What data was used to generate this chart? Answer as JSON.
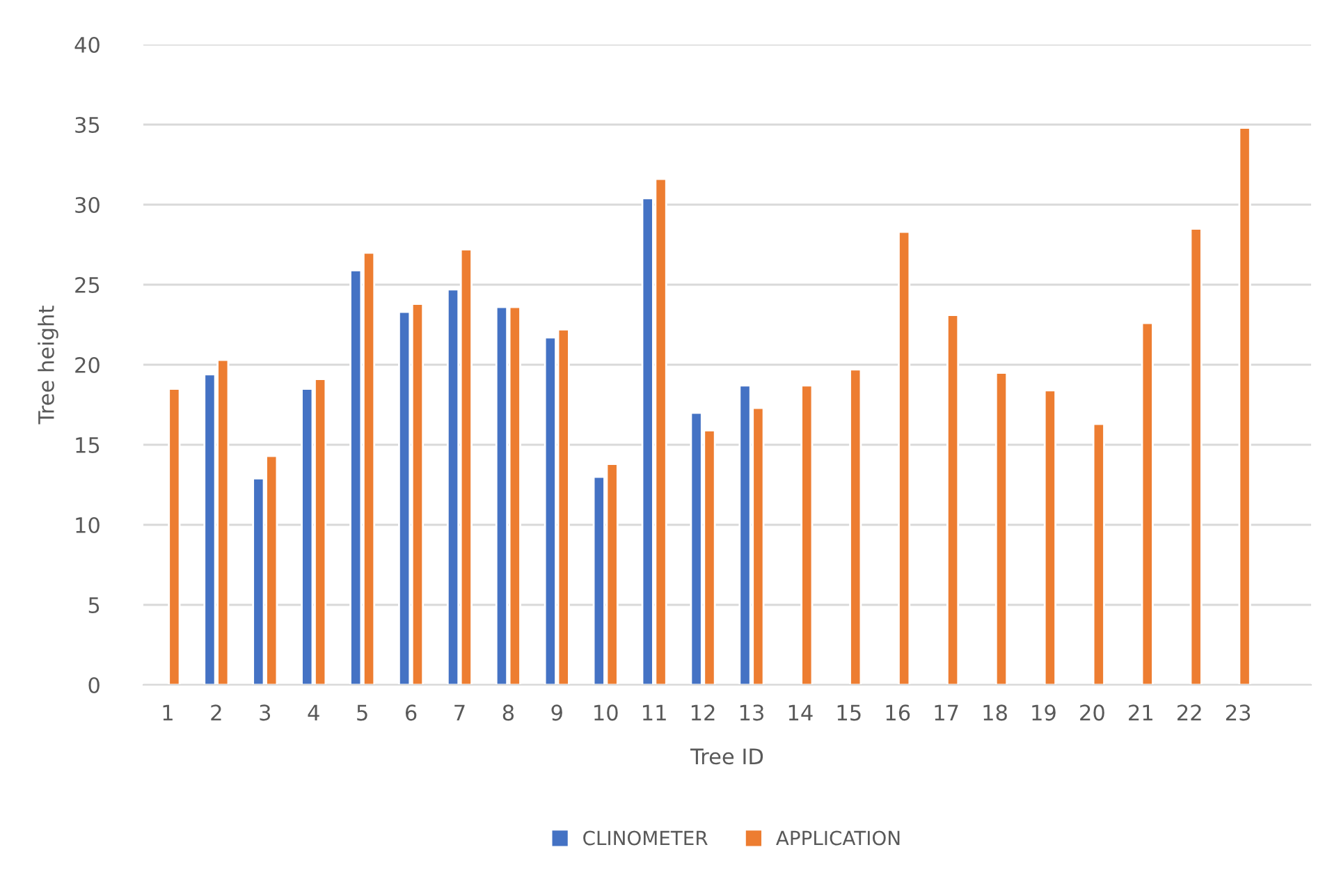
{
  "chart_data": {
    "type": "bar",
    "xlabel": "Tree ID",
    "ylabel": "Tree height",
    "categories": [
      "1",
      "2",
      "3",
      "4",
      "5",
      "6",
      "7",
      "8",
      "9",
      "10",
      "11",
      "12",
      "13",
      "14",
      "15",
      "16",
      "17",
      "18",
      "19",
      "20",
      "21",
      "22",
      "23",
      null
    ],
    "series": [
      {
        "name": "CLINOMETER",
        "color": "#4472c4",
        "values": [
          null,
          19.4,
          12.9,
          18.5,
          25.9,
          23.3,
          24.7,
          23.6,
          21.7,
          13.0,
          30.4,
          17.0,
          18.7,
          null,
          null,
          null,
          null,
          null,
          null,
          null,
          null,
          null,
          null,
          null
        ]
      },
      {
        "name": "APPLICATION",
        "color": "#ed7d31",
        "values": [
          18.5,
          20.3,
          14.3,
          19.1,
          27.0,
          23.8,
          27.2,
          23.6,
          22.2,
          13.8,
          31.6,
          15.9,
          17.3,
          18.7,
          19.7,
          28.3,
          23.1,
          19.5,
          18.4,
          16.3,
          22.6,
          28.5,
          34.8,
          null
        ]
      }
    ],
    "ylim": [
      0,
      40
    ],
    "yticks": [
      0,
      5,
      10,
      15,
      20,
      25,
      30,
      35,
      40
    ],
    "grid": "y",
    "legend": "bottom"
  }
}
